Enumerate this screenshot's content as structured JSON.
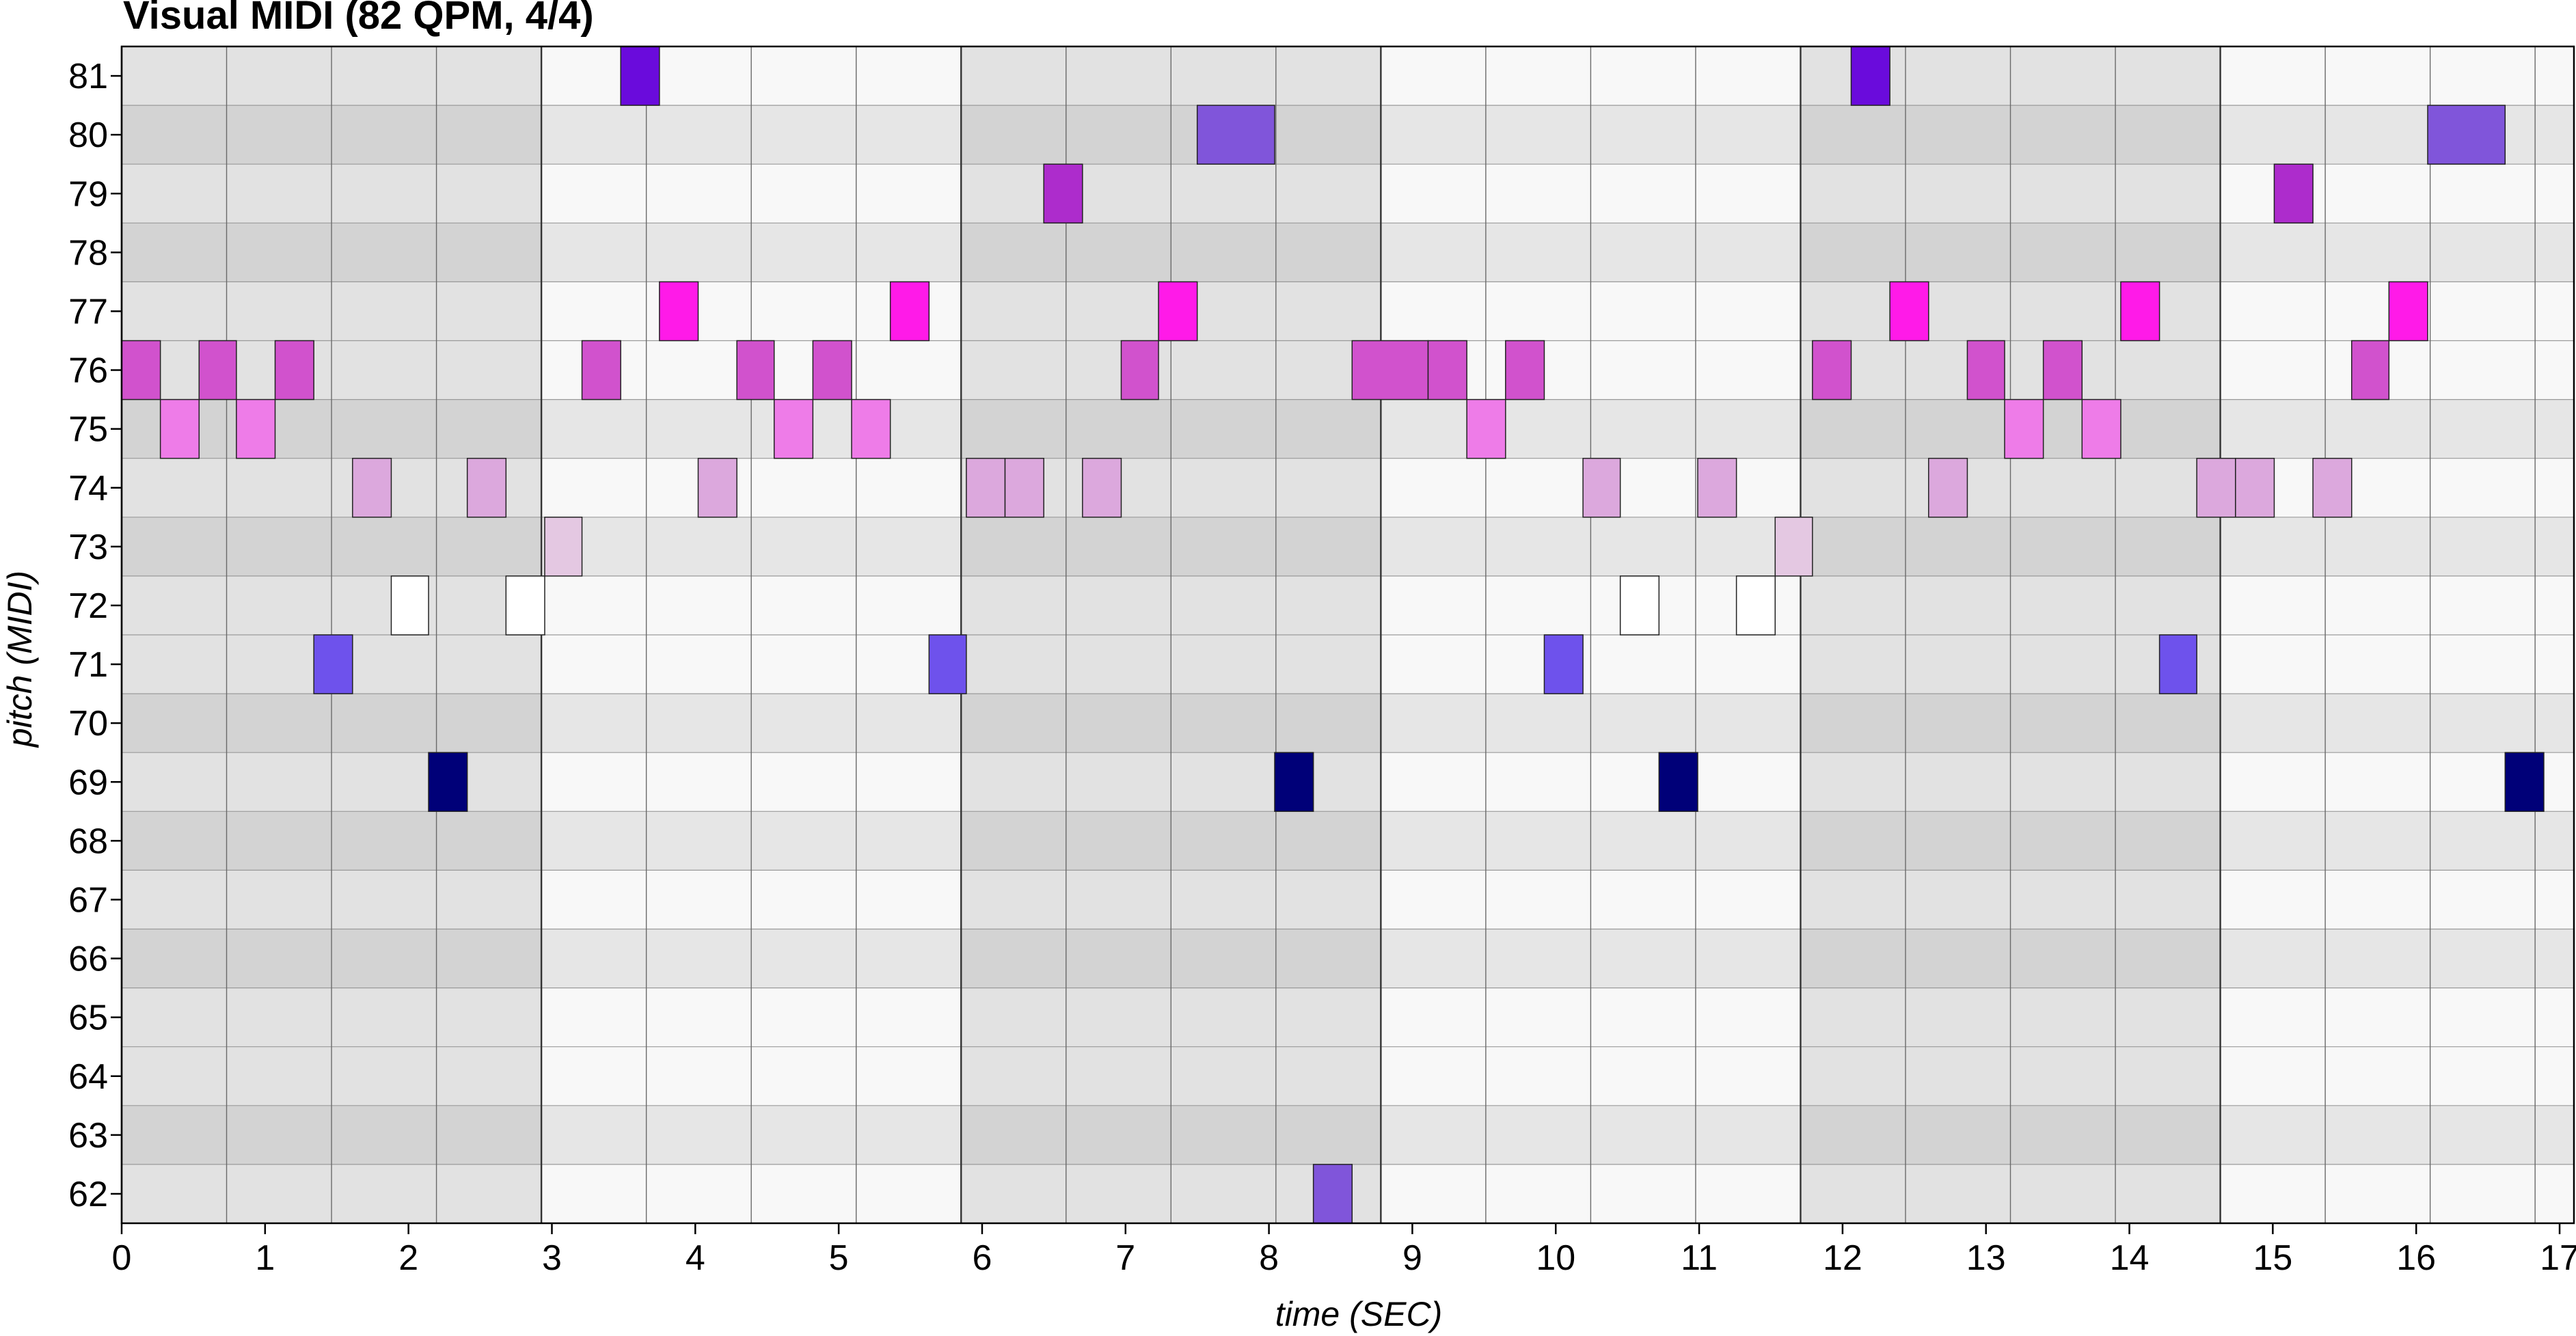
{
  "chart_data": {
    "type": "piano-roll",
    "title": "Visual MIDI (82 QPM, 4/4)",
    "xlabel": "time (SEC)",
    "ylabel": "pitch (MIDI)",
    "xlim": [
      0,
      17.1
    ],
    "ylim": [
      62,
      81
    ],
    "x_ticks": [
      0,
      1,
      2,
      3,
      4,
      5,
      6,
      7,
      8,
      9,
      10,
      11,
      12,
      13,
      14,
      15,
      16,
      17
    ],
    "y_ticks": [
      62,
      63,
      64,
      65,
      66,
      67,
      68,
      69,
      70,
      71,
      72,
      73,
      74,
      75,
      76,
      77,
      78,
      79,
      80,
      81
    ],
    "beat_seconds": 0.7317,
    "beats_per_bar": 4,
    "grid": true,
    "colors": {
      "dark_row": "#d3d3d3",
      "light_row": "#e2e2e2",
      "dark_row_alt_bar": "#e6e6e6",
      "light_row_alt_bar": "#f8f8f8"
    },
    "notes": [
      {
        "pitch": 76,
        "start": 0.0,
        "end": 0.27,
        "color": "#d152cd"
      },
      {
        "pitch": 75,
        "start": 0.27,
        "end": 0.54,
        "color": "#ee7ce8"
      },
      {
        "pitch": 76,
        "start": 0.54,
        "end": 0.8,
        "color": "#d152cd"
      },
      {
        "pitch": 75,
        "start": 0.8,
        "end": 1.07,
        "color": "#ee7ce8"
      },
      {
        "pitch": 76,
        "start": 1.07,
        "end": 1.34,
        "color": "#d152cd"
      },
      {
        "pitch": 71,
        "start": 1.34,
        "end": 1.61,
        "color": "#6e52ec"
      },
      {
        "pitch": 74,
        "start": 1.61,
        "end": 1.88,
        "color": "#dca8dd"
      },
      {
        "pitch": 72,
        "start": 1.88,
        "end": 2.14,
        "color": "#ffffff"
      },
      {
        "pitch": 69,
        "start": 2.14,
        "end": 2.41,
        "color": "#000078"
      },
      {
        "pitch": 74,
        "start": 2.41,
        "end": 2.68,
        "color": "#dca8dd"
      },
      {
        "pitch": 72,
        "start": 2.68,
        "end": 2.95,
        "color": "#ffffff"
      },
      {
        "pitch": 73,
        "start": 2.95,
        "end": 3.21,
        "color": "#e4c8e2"
      },
      {
        "pitch": 76,
        "start": 3.21,
        "end": 3.48,
        "color": "#d152cd"
      },
      {
        "pitch": 81,
        "start": 3.48,
        "end": 3.75,
        "color": "#6a0bdc"
      },
      {
        "pitch": 77,
        "start": 3.75,
        "end": 4.02,
        "color": "#ff1ae8"
      },
      {
        "pitch": 74,
        "start": 4.02,
        "end": 4.29,
        "color": "#dca8dd"
      },
      {
        "pitch": 76,
        "start": 4.29,
        "end": 4.55,
        "color": "#d152cd"
      },
      {
        "pitch": 75,
        "start": 4.55,
        "end": 4.82,
        "color": "#ee7ce8"
      },
      {
        "pitch": 76,
        "start": 4.82,
        "end": 5.09,
        "color": "#d152cd"
      },
      {
        "pitch": 75,
        "start": 5.09,
        "end": 5.36,
        "color": "#ee7ce8"
      },
      {
        "pitch": 77,
        "start": 5.36,
        "end": 5.63,
        "color": "#ff1ae8"
      },
      {
        "pitch": 71,
        "start": 5.63,
        "end": 5.89,
        "color": "#6e52ec"
      },
      {
        "pitch": 74,
        "start": 5.89,
        "end": 6.16,
        "color": "#dca8dd"
      },
      {
        "pitch": 74,
        "start": 6.16,
        "end": 6.43,
        "color": "#dca8dd"
      },
      {
        "pitch": 79,
        "start": 6.43,
        "end": 6.7,
        "color": "#ad2ccc"
      },
      {
        "pitch": 74,
        "start": 6.7,
        "end": 6.97,
        "color": "#dca8dd"
      },
      {
        "pitch": 76,
        "start": 6.97,
        "end": 7.23,
        "color": "#d152cd"
      },
      {
        "pitch": 77,
        "start": 7.23,
        "end": 7.5,
        "color": "#ff1ae8"
      },
      {
        "pitch": 80,
        "start": 7.5,
        "end": 8.04,
        "color": "#8055da"
      },
      {
        "pitch": 69,
        "start": 8.04,
        "end": 8.31,
        "color": "#000078"
      },
      {
        "pitch": 62,
        "start": 8.31,
        "end": 8.58,
        "color": "#8055da"
      },
      {
        "pitch": 76,
        "start": 8.58,
        "end": 9.11,
        "color": "#d152cd"
      },
      {
        "pitch": 76,
        "start": 9.11,
        "end": 9.38,
        "color": "#d152cd"
      },
      {
        "pitch": 75,
        "start": 9.38,
        "end": 9.65,
        "color": "#ee7ce8"
      },
      {
        "pitch": 76,
        "start": 9.65,
        "end": 9.92,
        "color": "#d152cd"
      },
      {
        "pitch": 71,
        "start": 9.92,
        "end": 10.19,
        "color": "#6e52ec"
      },
      {
        "pitch": 74,
        "start": 10.19,
        "end": 10.45,
        "color": "#dca8dd"
      },
      {
        "pitch": 72,
        "start": 10.45,
        "end": 10.72,
        "color": "#ffffff"
      },
      {
        "pitch": 69,
        "start": 10.72,
        "end": 10.99,
        "color": "#000078"
      },
      {
        "pitch": 74,
        "start": 10.99,
        "end": 11.26,
        "color": "#dca8dd"
      },
      {
        "pitch": 72,
        "start": 11.26,
        "end": 11.53,
        "color": "#ffffff"
      },
      {
        "pitch": 73,
        "start": 11.53,
        "end": 11.79,
        "color": "#e4c8e2"
      },
      {
        "pitch": 76,
        "start": 11.79,
        "end": 12.06,
        "color": "#d152cd"
      },
      {
        "pitch": 81,
        "start": 12.06,
        "end": 12.33,
        "color": "#6a0bdc"
      },
      {
        "pitch": 77,
        "start": 12.33,
        "end": 12.6,
        "color": "#ff1ae8"
      },
      {
        "pitch": 74,
        "start": 12.6,
        "end": 12.87,
        "color": "#dca8dd"
      },
      {
        "pitch": 76,
        "start": 12.87,
        "end": 13.13,
        "color": "#d152cd"
      },
      {
        "pitch": 75,
        "start": 13.13,
        "end": 13.4,
        "color": "#ee7ce8"
      },
      {
        "pitch": 76,
        "start": 13.4,
        "end": 13.67,
        "color": "#d152cd"
      },
      {
        "pitch": 75,
        "start": 13.67,
        "end": 13.94,
        "color": "#ee7ce8"
      },
      {
        "pitch": 77,
        "start": 13.94,
        "end": 14.21,
        "color": "#ff1ae8"
      },
      {
        "pitch": 71,
        "start": 14.21,
        "end": 14.47,
        "color": "#6e52ec"
      },
      {
        "pitch": 74,
        "start": 14.47,
        "end": 14.74,
        "color": "#dca8dd"
      },
      {
        "pitch": 74,
        "start": 14.74,
        "end": 15.01,
        "color": "#dca8dd"
      },
      {
        "pitch": 79,
        "start": 15.01,
        "end": 15.28,
        "color": "#ad2ccc"
      },
      {
        "pitch": 74,
        "start": 15.28,
        "end": 15.55,
        "color": "#dca8dd"
      },
      {
        "pitch": 76,
        "start": 15.55,
        "end": 15.81,
        "color": "#d152cd"
      },
      {
        "pitch": 77,
        "start": 15.81,
        "end": 16.08,
        "color": "#ff1ae8"
      },
      {
        "pitch": 80,
        "start": 16.08,
        "end": 16.62,
        "color": "#8055da"
      },
      {
        "pitch": 69,
        "start": 16.62,
        "end": 16.89,
        "color": "#000078"
      }
    ]
  }
}
